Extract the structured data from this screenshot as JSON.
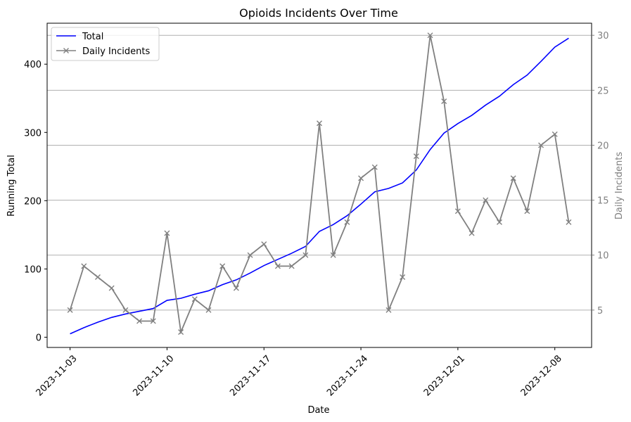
{
  "chart_data": {
    "type": "line",
    "title": "Opioids Incidents Over Time",
    "xlabel": "Date",
    "ylabel": "Running Total",
    "y2label": "Daily Incidents",
    "x_ticks": [
      "2023-11-03",
      "2023-11-10",
      "2023-11-17",
      "2023-11-24",
      "2023-12-01",
      "2023-12-08"
    ],
    "y_ticks": [
      0,
      100,
      200,
      300,
      400
    ],
    "y2_ticks": [
      5,
      10,
      15,
      20,
      25,
      30
    ],
    "ylim": [
      -15,
      460
    ],
    "y2lim": [
      1.6,
      31.1
    ],
    "grid": "horizontal lines at right-axis ticks",
    "legend_position": "top-left",
    "dates": [
      "2023-11-03",
      "2023-11-04",
      "2023-11-05",
      "2023-11-06",
      "2023-11-07",
      "2023-11-08",
      "2023-11-09",
      "2023-11-10",
      "2023-11-11",
      "2023-11-12",
      "2023-11-13",
      "2023-11-14",
      "2023-11-15",
      "2023-11-16",
      "2023-11-17",
      "2023-11-18",
      "2023-11-19",
      "2023-11-20",
      "2023-11-21",
      "2023-11-22",
      "2023-11-23",
      "2023-11-24",
      "2023-11-25",
      "2023-11-26",
      "2023-11-27",
      "2023-11-28",
      "2023-11-29",
      "2023-11-30",
      "2023-12-01",
      "2023-12-02",
      "2023-12-03",
      "2023-12-04",
      "2023-12-05",
      "2023-12-06",
      "2023-12-07",
      "2023-12-08",
      "2023-12-09"
    ],
    "series": [
      {
        "name": "Total",
        "axis": "left",
        "color": "#0000ff",
        "marker": "none",
        "values": [
          5,
          14,
          22,
          29,
          34,
          38,
          42,
          54,
          57,
          63,
          68,
          77,
          84,
          94,
          105,
          114,
          123,
          133,
          155,
          165,
          178,
          195,
          213,
          218,
          226,
          245,
          275,
          299,
          313,
          325,
          340,
          353,
          370,
          384,
          404,
          425,
          438
        ]
      },
      {
        "name": "Daily Incidents",
        "axis": "right",
        "color": "#808080",
        "marker": "x",
        "values": [
          5,
          9,
          8,
          7,
          5,
          4,
          4,
          12,
          3,
          6,
          5,
          9,
          7,
          10,
          11,
          9,
          9,
          10,
          22,
          10,
          13,
          17,
          18,
          5,
          8,
          19,
          30,
          24,
          14,
          12,
          15,
          13,
          17,
          14,
          20,
          21,
          13
        ]
      }
    ]
  }
}
